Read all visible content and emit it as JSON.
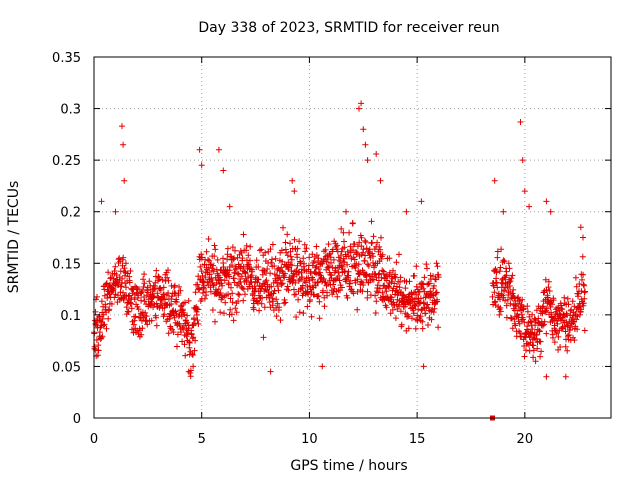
{
  "chart_data": {
    "type": "scatter",
    "title": "Day 338 of 2023, SRMTID for receiver reun",
    "xlabel": "GPS time / hours",
    "ylabel": "SRMTID / TECUs",
    "xlim": [
      0,
      24
    ],
    "ylim": [
      0,
      0.35
    ],
    "xticks": [
      0,
      5,
      10,
      15,
      20
    ],
    "xtick_labels": [
      "0",
      "5",
      "10",
      "15",
      "20"
    ],
    "yticks": [
      0,
      0.05,
      0.1,
      0.15,
      0.2,
      0.25,
      0.3,
      0.35
    ],
    "ytick_labels": [
      "0",
      "0.05",
      "0.1",
      "0.15",
      "0.2",
      "0.25",
      "0.3",
      "0.35"
    ],
    "grid": true,
    "marker": "plus",
    "color": "#e00000",
    "series": [
      {
        "name": "SRMTID",
        "profile": [
          [
            0.0,
            0.09,
            0.03
          ],
          [
            0.2,
            0.075,
            0.03
          ],
          [
            0.5,
            0.11,
            0.025
          ],
          [
            1.0,
            0.135,
            0.025
          ],
          [
            1.4,
            0.13,
            0.03
          ],
          [
            2.0,
            0.1,
            0.03
          ],
          [
            3.0,
            0.12,
            0.025
          ],
          [
            4.0,
            0.1,
            0.03
          ],
          [
            4.5,
            0.075,
            0.03
          ],
          [
            5.0,
            0.14,
            0.035
          ],
          [
            6.0,
            0.135,
            0.035
          ],
          [
            7.0,
            0.14,
            0.03
          ],
          [
            8.0,
            0.13,
            0.035
          ],
          [
            9.0,
            0.14,
            0.035
          ],
          [
            10.0,
            0.135,
            0.035
          ],
          [
            11.0,
            0.14,
            0.035
          ],
          [
            12.0,
            0.15,
            0.035
          ],
          [
            13.0,
            0.145,
            0.035
          ],
          [
            14.0,
            0.125,
            0.03
          ],
          [
            15.0,
            0.11,
            0.03
          ],
          [
            16.0,
            0.12,
            0.025
          ],
          [
            18.5,
            0.13,
            0.03
          ],
          [
            19.0,
            0.13,
            0.03
          ],
          [
            19.5,
            0.11,
            0.03
          ],
          [
            20.0,
            0.09,
            0.025
          ],
          [
            20.5,
            0.08,
            0.025
          ],
          [
            21.0,
            0.11,
            0.03
          ],
          [
            21.5,
            0.09,
            0.025
          ],
          [
            22.0,
            0.09,
            0.025
          ],
          [
            22.7,
            0.12,
            0.03
          ]
        ],
        "segments": [
          [
            0.0,
            16.0
          ],
          [
            18.5,
            22.8
          ]
        ],
        "sample_step_hours": 0.012,
        "spikes": [
          [
            0.35,
            0.21
          ],
          [
            1.0,
            0.2
          ],
          [
            1.3,
            0.283
          ],
          [
            1.35,
            0.265
          ],
          [
            1.4,
            0.23
          ],
          [
            4.9,
            0.26
          ],
          [
            5.0,
            0.245
          ],
          [
            5.8,
            0.26
          ],
          [
            6.0,
            0.24
          ],
          [
            6.3,
            0.205
          ],
          [
            9.2,
            0.23
          ],
          [
            9.3,
            0.22
          ],
          [
            11.7,
            0.2
          ],
          [
            12.3,
            0.3
          ],
          [
            12.4,
            0.305
          ],
          [
            12.5,
            0.28
          ],
          [
            12.6,
            0.265
          ],
          [
            12.7,
            0.25
          ],
          [
            13.1,
            0.256
          ],
          [
            13.3,
            0.23
          ],
          [
            14.5,
            0.2
          ],
          [
            15.2,
            0.21
          ],
          [
            18.6,
            0.23
          ],
          [
            19.0,
            0.2
          ],
          [
            19.8,
            0.287
          ],
          [
            19.9,
            0.25
          ],
          [
            20.0,
            0.22
          ],
          [
            20.2,
            0.205
          ],
          [
            21.0,
            0.21
          ],
          [
            21.2,
            0.2
          ],
          [
            22.6,
            0.185
          ],
          [
            22.7,
            0.175
          ],
          [
            8.2,
            0.045
          ],
          [
            4.4,
            0.045
          ],
          [
            4.6,
            0.05
          ],
          [
            10.6,
            0.05
          ],
          [
            15.3,
            0.05
          ],
          [
            21.0,
            0.04
          ],
          [
            21.9,
            0.04
          ],
          [
            0.1,
            0.06
          ],
          [
            20.5,
            0.055
          ]
        ],
        "isolated_points": [
          [
            18.5,
            0.0
          ]
        ]
      }
    ]
  }
}
